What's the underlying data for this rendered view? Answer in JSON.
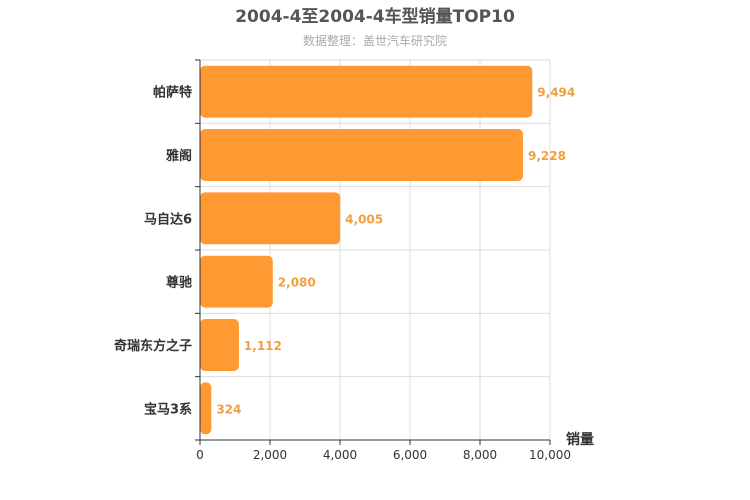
{
  "chart_data": {
    "type": "bar",
    "orientation": "horizontal",
    "title": "2004-4至2004-4车型销量TOP10",
    "subtitle": "数据整理：盖世汽车研究院",
    "xlabel": "销量",
    "ylabel": "",
    "categories": [
      "帕萨特",
      "雅阁",
      "马自达6",
      "尊驰",
      "奇瑞东方之子",
      "宝马3系"
    ],
    "values": [
      9494,
      9228,
      4005,
      2080,
      1112,
      324
    ],
    "value_labels": [
      "9,494",
      "9,228",
      "4,005",
      "2,080",
      "1,112",
      "324"
    ],
    "xlim": [
      0,
      10000
    ],
    "x_ticks": [
      0,
      2000,
      4000,
      6000,
      8000,
      10000
    ],
    "x_tick_labels": [
      "0",
      "2,000",
      "4,000",
      "6,000",
      "8,000",
      "10,000"
    ],
    "grid": true,
    "legend": "none",
    "colors": {
      "bar": "#ff9a33",
      "label": "#f0a040",
      "grid": "#dddddd",
      "axis": "#333333"
    }
  }
}
